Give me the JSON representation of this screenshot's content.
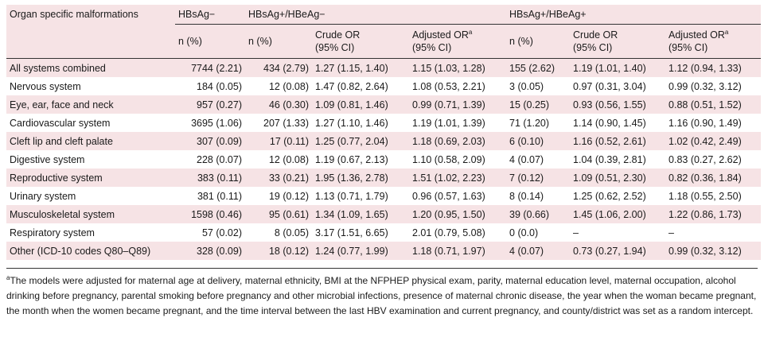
{
  "table": {
    "headers": {
      "organ": "Organ specific malformations",
      "group_neg": "HBsAg−",
      "group_pos_neg": "HBsAg+/HBeAg−",
      "group_pos_pos": "HBsAg+/HBeAg+",
      "n_pct": "n (%)",
      "crude_or": "Crude OR",
      "ci": "(95% CI)",
      "adjusted_or": "Adjusted OR",
      "sup_mark": "a"
    },
    "rows": [
      {
        "organ": "All systems combined",
        "neg_n": "7744 (2.21)",
        "pn_n": "434 (2.79)",
        "pn_crude": "1.27 (1.15, 1.40)",
        "pn_adj": "1.15 (1.03, 1.28)",
        "pp_n": "155 (2.62)",
        "pp_crude": "1.19 (1.01, 1.40)",
        "pp_adj": "1.12 (0.94, 1.33)"
      },
      {
        "organ": "Nervous system",
        "neg_n": "184 (0.05)",
        "pn_n": "12 (0.08)",
        "pn_crude": "1.47 (0.82, 2.64)",
        "pn_adj": "1.08 (0.53, 2.21)",
        "pp_n": "3 (0.05)",
        "pp_crude": "0.97 (0.31, 3.04)",
        "pp_adj": "0.99 (0.32, 3.12)"
      },
      {
        "organ": "Eye, ear, face and neck",
        "neg_n": "957 (0.27)",
        "pn_n": "46 (0.30)",
        "pn_crude": "1.09 (0.81, 1.46)",
        "pn_adj": "0.99 (0.71, 1.39)",
        "pp_n": "15 (0.25)",
        "pp_crude": "0.93 (0.56, 1.55)",
        "pp_adj": "0.88 (0.51, 1.52)"
      },
      {
        "organ": "Cardiovascular system",
        "neg_n": "3695 (1.06)",
        "pn_n": "207 (1.33)",
        "pn_crude": "1.27 (1.10, 1.46)",
        "pn_adj": "1.19 (1.01, 1.39)",
        "pp_n": "71 (1.20)",
        "pp_crude": "1.14 (0.90, 1.45)",
        "pp_adj": "1.16 (0.90, 1.49)"
      },
      {
        "organ": "Cleft lip and cleft palate",
        "neg_n": "307 (0.09)",
        "pn_n": "17 (0.11)",
        "pn_crude": "1.25 (0.77, 2.04)",
        "pn_adj": "1.18 (0.69, 2.03)",
        "pp_n": "6 (0.10)",
        "pp_crude": "1.16 (0.52, 2.61)",
        "pp_adj": "1.02 (0.42, 2.49)"
      },
      {
        "organ": "Digestive system",
        "neg_n": "228 (0.07)",
        "pn_n": "12 (0.08)",
        "pn_crude": "1.19 (0.67, 2.13)",
        "pn_adj": "1.10 (0.58, 2.09)",
        "pp_n": "4 (0.07)",
        "pp_crude": "1.04 (0.39, 2.81)",
        "pp_adj": "0.83 (0.27, 2.62)"
      },
      {
        "organ": "Reproductive system",
        "neg_n": "383 (0.11)",
        "pn_n": "33 (0.21)",
        "pn_crude": "1.95 (1.36, 2.78)",
        "pn_adj": "1.51 (1.02, 2.23)",
        "pp_n": "7 (0.12)",
        "pp_crude": "1.09 (0.51, 2.30)",
        "pp_adj": "0.82 (0.36, 1.84)"
      },
      {
        "organ": "Urinary system",
        "neg_n": "381 (0.11)",
        "pn_n": "19 (0.12)",
        "pn_crude": "1.13 (0.71, 1.79)",
        "pn_adj": "0.96 (0.57, 1.63)",
        "pp_n": "8 (0.14)",
        "pp_crude": "1.25 (0.62, 2.52)",
        "pp_adj": "1.18 (0.55, 2.50)"
      },
      {
        "organ": "Musculoskeletal system",
        "neg_n": "1598 (0.46)",
        "pn_n": "95 (0.61)",
        "pn_crude": "1.34 (1.09, 1.65)",
        "pn_adj": "1.20 (0.95, 1.50)",
        "pp_n": "39 (0.66)",
        "pp_crude": "1.45 (1.06, 2.00)",
        "pp_adj": "1.22 (0.86, 1.73)"
      },
      {
        "organ": "Respiratory system",
        "neg_n": "57 (0.02)",
        "pn_n": "8 (0.05)",
        "pn_crude": "3.17 (1.51, 6.65)",
        "pn_adj": "2.01 (0.79, 5.08)",
        "pp_n": "0 (0.0)",
        "pp_crude": "–",
        "pp_adj": "–"
      },
      {
        "organ": "Other (ICD-10 codes Q80–Q89)",
        "neg_n": "328 (0.09)",
        "pn_n": "18 (0.12)",
        "pn_crude": "1.24 (0.77, 1.99)",
        "pn_adj": "1.18 (0.71, 1.97)",
        "pp_n": "4 (0.07)",
        "pp_crude": "0.73 (0.27, 1.94)",
        "pp_adj": "0.99 (0.32, 3.12)"
      }
    ]
  },
  "footnote": {
    "mark": "a",
    "text": "The models were adjusted for maternal age at delivery, maternal ethnicity, BMI at the NFPHEP physical exam, parity, maternal education level, maternal occupation, alcohol drinking before pregnancy, parental smoking before pregnancy and other microbial infections, presence of maternal chronic disease, the year when the woman became pregnant, the month when the women became pregnant, and the time interval between the last HBV examination and current pregnancy, and county/district was set as a random intercept."
  },
  "colors": {
    "stripe": "#f6e3e5",
    "rule": "#333333"
  }
}
